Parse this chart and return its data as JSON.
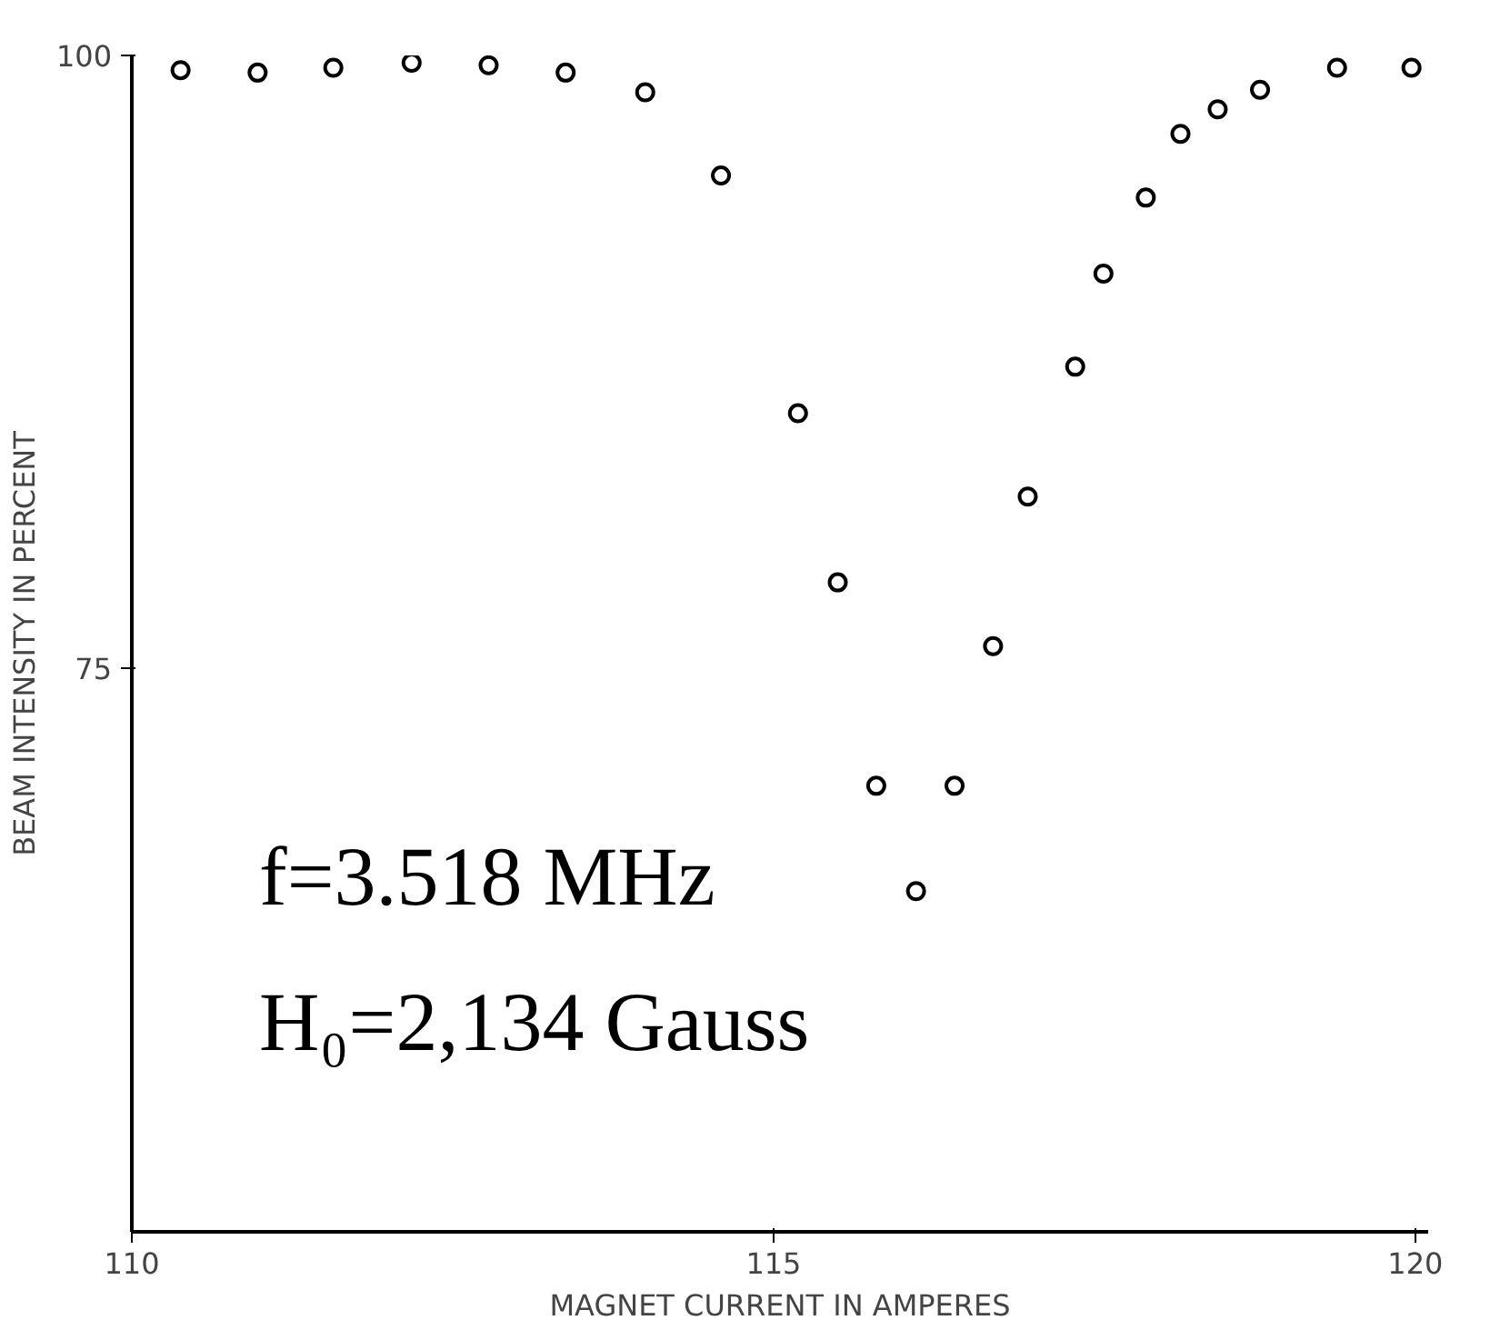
{
  "chart_data": {
    "type": "scatter",
    "xlabel": "MAGNET CURRENT IN AMPERES",
    "ylabel": "BEAM INTENSITY IN PERCENT",
    "x": [
      110.38,
      110.98,
      111.57,
      112.18,
      112.78,
      113.38,
      114.0,
      114.59,
      115.19,
      115.5,
      115.8,
      116.11,
      116.41,
      116.71,
      116.98,
      117.35,
      117.57,
      117.9,
      118.17,
      118.46,
      118.79,
      119.39,
      119.97
    ],
    "series": [
      {
        "color": "#000000",
        "values": [
          99.4,
          99.3,
          99.5,
          99.7,
          99.6,
          99.3,
          98.5,
          95.1,
          85.4,
          78.5,
          70.2,
          65.9,
          70.2,
          75.9,
          82.0,
          87.3,
          91.1,
          94.2,
          96.8,
          97.8,
          98.6,
          99.5,
          99.5
        ]
      }
    ],
    "xlim": [
      110,
      120.1
    ],
    "ylim": [
      52,
      100
    ],
    "xticks": [
      110,
      115,
      120
    ],
    "yticks": [
      75,
      100
    ],
    "marker": "circle",
    "grid": false,
    "annotations": [
      "f=3.518 MHz",
      "H₀=2,134 Gauss"
    ]
  }
}
